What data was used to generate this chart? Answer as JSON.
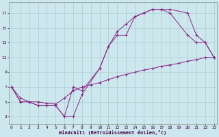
{
  "xlabel": "Windchill (Refroidissement éolien,°C)",
  "bg_color": "#cce8ee",
  "grid_color": "#aacccc",
  "line_color": "#882288",
  "line1_x": [
    0,
    1,
    2,
    3,
    4,
    5,
    6,
    7,
    8,
    10,
    11,
    12,
    13,
    14,
    15,
    16,
    17,
    18,
    20,
    21,
    22,
    23
  ],
  "line1_y": [
    7,
    5,
    5,
    4.5,
    4.5,
    4.5,
    3,
    3,
    6,
    9.5,
    12.5,
    14,
    14,
    16.5,
    17,
    17.5,
    17.5,
    17.5,
    17,
    14,
    13,
    11
  ],
  "line2_x": [
    0,
    1,
    2,
    3,
    4,
    5,
    6,
    7,
    8,
    10,
    11,
    12,
    13,
    14,
    15,
    16,
    17,
    18,
    20,
    21,
    22,
    23
  ],
  "line2_y": [
    7,
    5,
    5,
    4.5,
    4.5,
    4.5,
    3,
    7,
    6.5,
    9.5,
    12.5,
    14.5,
    15.5,
    16.5,
    17,
    17.5,
    17.5,
    17,
    14,
    13,
    13,
    11
  ],
  "line3_x": [
    0,
    1,
    2,
    3,
    4,
    5,
    6,
    7,
    8,
    9,
    10,
    11,
    12,
    13,
    14,
    15,
    16,
    17,
    18,
    19,
    20,
    21,
    22,
    23
  ],
  "line3_y": [
    7,
    5.5,
    5,
    5,
    4.8,
    4.7,
    5.5,
    6.5,
    7.0,
    7.3,
    7.6,
    8.0,
    8.4,
    8.7,
    9.0,
    9.3,
    9.5,
    9.8,
    10.0,
    10.2,
    10.5,
    10.7,
    11.0,
    11.0
  ],
  "yticks": [
    3,
    5,
    7,
    9,
    11,
    13,
    15,
    17
  ],
  "xticks": [
    0,
    1,
    2,
    3,
    4,
    5,
    6,
    7,
    8,
    9,
    10,
    11,
    12,
    13,
    14,
    15,
    16,
    17,
    18,
    19,
    20,
    21,
    22,
    23
  ],
  "ylim": [
    2.0,
    18.5
  ],
  "xlim": [
    -0.3,
    23.3
  ]
}
